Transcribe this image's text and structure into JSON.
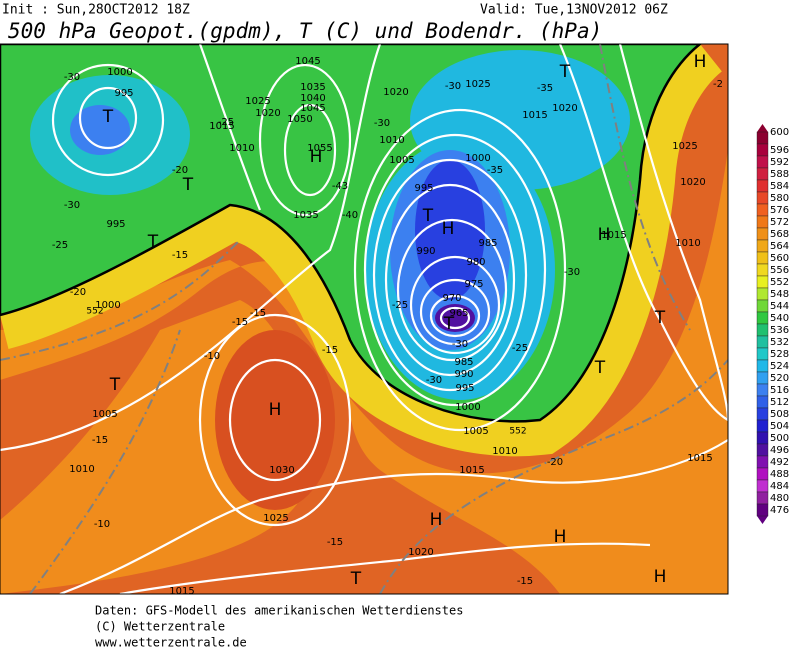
{
  "header": {
    "init": "Init : Sun,28OCT2012 18Z",
    "valid": "Valid: Tue,13NOV2012 06Z",
    "title": "500 hPa Geopot.(gpdm), T (C) und Bodendr. (hPa)"
  },
  "map_labels": [
    "T",
    "-30",
    "1000",
    "995",
    "1010",
    "1015",
    "1025",
    "1020",
    "-25",
    "1035",
    "1040",
    "1045",
    "1050",
    "1055",
    "H",
    "1045",
    "-20",
    "T",
    "-30",
    "995",
    "T",
    "-25",
    "-20",
    "552",
    "1000",
    "1035",
    "-40",
    "-43",
    "-15",
    "-15",
    "-15",
    "-10",
    "-15",
    "T",
    "1005",
    "-15",
    "1010",
    "H",
    "1030",
    "1025",
    "-10",
    "-15",
    "1020",
    "-15",
    "1015",
    "H",
    "T",
    "H",
    "H",
    "1020",
    "-30",
    "1025",
    "-30",
    "1010",
    "1005",
    "1000",
    "-35",
    "995",
    "T",
    "H",
    "990",
    "985",
    "980",
    "975",
    "970",
    "965",
    "T",
    "-30",
    "985",
    "990",
    "-30",
    "995",
    "1000",
    "1005",
    "552",
    "1010",
    "1015",
    "-20",
    "-25",
    "-25",
    "T",
    "-35",
    "1020",
    "1015",
    "1015",
    "H",
    "-30",
    "T",
    "T",
    "1025",
    "1020",
    "1010",
    "1015",
    "H",
    "-2"
  ],
  "legend": {
    "values": [
      600,
      596,
      592,
      588,
      584,
      580,
      576,
      572,
      568,
      564,
      560,
      556,
      552,
      548,
      544,
      540,
      536,
      532,
      528,
      524,
      520,
      516,
      512,
      508,
      504,
      500,
      496,
      492,
      488,
      484,
      480,
      476
    ],
    "colors": [
      "#8c0030",
      "#a8003c",
      "#c0104a",
      "#d02040",
      "#e03030",
      "#e84828",
      "#f06020",
      "#f07818",
      "#f09018",
      "#f0a818",
      "#f0c018",
      "#f0d820",
      "#e8f020",
      "#b0e830",
      "#70d838",
      "#30c840",
      "#20c070",
      "#20c0a0",
      "#20c8c8",
      "#20b8e8",
      "#30a0f0",
      "#3c80f0",
      "#3060e8",
      "#2840e0",
      "#2020d0",
      "#3010b0",
      "#5010a0",
      "#8010b0",
      "#b010c0",
      "#c030d0",
      "#9020a0",
      "#600080"
    ]
  },
  "footer": [
    "Daten: GFS-Modell des amerikanischen Wetterdienstes",
    "(C) Wetterzentrale",
    "www.wetterzentrale.de"
  ]
}
